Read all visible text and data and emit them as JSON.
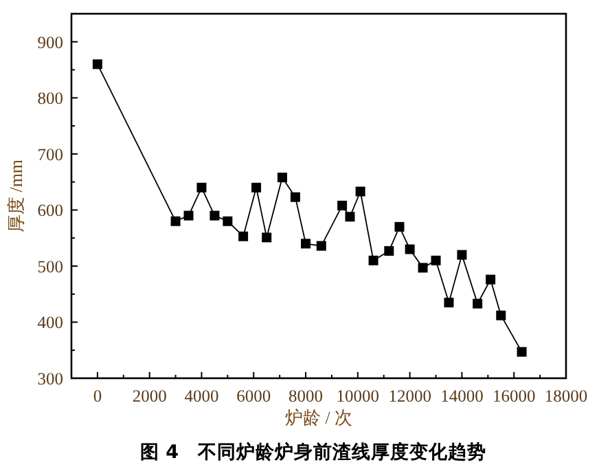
{
  "chart_data": {
    "type": "line",
    "title": "图 4　不同炉龄炉身前渣线厚度变化趋势",
    "xlabel": "炉龄 / 次",
    "ylabel": "厚度 /mm",
    "marker": "square",
    "line_style": "solid",
    "grid": false,
    "x": [
      0,
      3000,
      3500,
      4000,
      4500,
      5000,
      5600,
      6100,
      6500,
      7100,
      7600,
      8000,
      8600,
      9400,
      9700,
      10100,
      10600,
      11200,
      11600,
      12000,
      12500,
      13000,
      13500,
      14000,
      14600,
      15100,
      15500,
      16300
    ],
    "series": [
      {
        "color": "#000000",
        "values": [
          860,
          580,
          590,
          640,
          590,
          580,
          553,
          640,
          551,
          658,
          623,
          540,
          536,
          608,
          588,
          633,
          510,
          527,
          570,
          530,
          497,
          510,
          435,
          520,
          433,
          476,
          412,
          347
        ]
      }
    ],
    "xlim": [
      -1000,
      18000
    ],
    "xticks": [
      0,
      {
        "value": 1000,
        "label": null
      },
      2000,
      {
        "value": 3000,
        "label": null
      },
      4000,
      {
        "value": 5000,
        "label": null
      },
      6000,
      {
        "value": 7000,
        "label": null
      },
      8000,
      {
        "value": 9000,
        "label": null
      },
      10000,
      {
        "value": 11000,
        "label": null
      },
      12000,
      {
        "value": 13000,
        "label": null
      },
      14000,
      {
        "value": 15000,
        "label": null
      },
      16000,
      {
        "value": 17000,
        "label": null
      },
      18000
    ],
    "ylim": [
      300,
      950
    ],
    "yticks": [
      300,
      {
        "value": 350,
        "label": null
      },
      400,
      {
        "value": 450,
        "label": null
      },
      500,
      {
        "value": 550,
        "label": null
      },
      600,
      {
        "value": 650,
        "label": null
      },
      700,
      {
        "value": 750,
        "label": null
      },
      800,
      {
        "value": 850,
        "label": null
      },
      900
    ]
  }
}
